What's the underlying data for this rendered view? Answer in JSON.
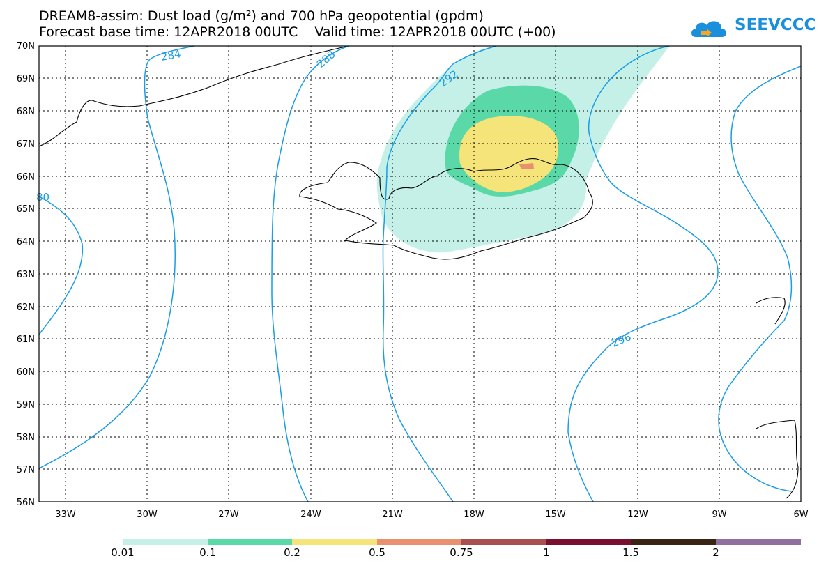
{
  "header": {
    "title_line1": "DREAM8-assim: Dust load (g/m²) and 700 hPa geopotential (gpdm)",
    "title_line2": "Forecast base time: 12APR2018 00UTC    Valid time: 12APR2018 00UTC (+00)"
  },
  "logo": {
    "text": "SEEVCCC",
    "icon": "cloud-arrow-icon",
    "color": "#1a8fdc"
  },
  "map": {
    "lat_labels": [
      "70N",
      "69N",
      "68N",
      "67N",
      "66N",
      "65N",
      "64N",
      "63N",
      "62N",
      "61N",
      "60N",
      "59N",
      "58N",
      "57N",
      "56N"
    ],
    "lon_labels": [
      "33W",
      "30W",
      "27W",
      "24W",
      "21W",
      "18W",
      "15W",
      "12W",
      "9W",
      "6W"
    ],
    "contour_color": "#1a9de6",
    "contour_labels": [
      "284",
      "288",
      "292",
      "296",
      "80"
    ]
  },
  "colorbar": {
    "labels": [
      "0.01",
      "0.1",
      "0.2",
      "0.5",
      "0.75",
      "1",
      "1.5",
      "2"
    ],
    "colors": [
      "#c4f0e8",
      "#5ad8a8",
      "#f5e47a",
      "#e89070",
      "#a85050",
      "#7a1030",
      "#3a2414",
      "#9070a0"
    ]
  }
}
